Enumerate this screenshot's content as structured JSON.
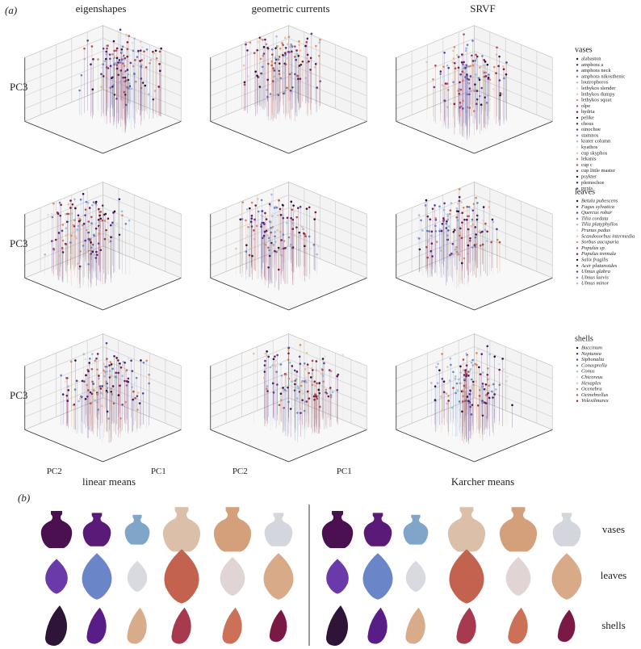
{
  "panel_a": {
    "label": "(a)",
    "column_titles": [
      "eigenshapes",
      "geometric currents",
      "SRVF"
    ],
    "axis_labels": {
      "pc1": "PC1",
      "pc2": "PC2",
      "pc3": "PC3"
    },
    "bottom_labels": [
      "linear means",
      "Karcher means"
    ],
    "legends": [
      {
        "title": "vases",
        "items": [
          "alabaston",
          "amphora a",
          "amphora neck",
          "amphora nikosthenic",
          "loutrophoros",
          "lethykos slender",
          "lethykos dumpy",
          "lethykos squat",
          "olpe",
          "hydria",
          "pelike",
          "chous",
          "oinochoe",
          "stamnos",
          "krater column",
          "kyathos",
          "cup skyphos",
          "lekanis",
          "cup c",
          "cup little master",
          "psykter",
          "plemochoe",
          "pyxis"
        ]
      },
      {
        "title": "leaves",
        "items": [
          "Betula pubescens",
          "Fagus sylvatica",
          "Quercus robur",
          "Tilia cordata",
          "Tilia platyphyllos",
          "Prunus padus",
          "Scandosorbus intermedia",
          "Sorbus aucuparia",
          "Populus sp.",
          "Populus tremula",
          "Salix fragilis",
          "Acer platanoides",
          "Ulmus glabra",
          "Ulmus laevis",
          "Ulmus minor"
        ]
      },
      {
        "title": "shells",
        "items": [
          "Buccinum",
          "Neptunea",
          "Siphonalia",
          "Conasprella",
          "Conus",
          "Chicoreus",
          "Hexaplex",
          "Ocenebra",
          "Ocinebrellus",
          "Volexilmurex"
        ]
      }
    ]
  },
  "panel_b": {
    "label": "(b)",
    "row_labels": [
      "vases",
      "leaves",
      "shells"
    ]
  }
}
